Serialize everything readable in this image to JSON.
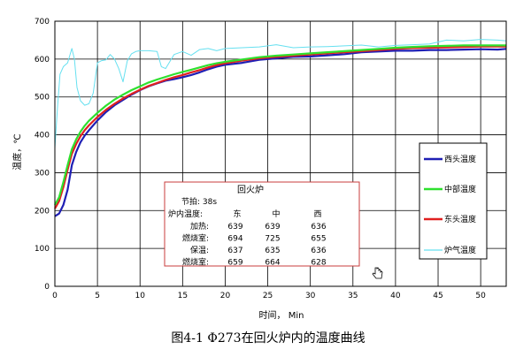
{
  "chart_data": {
    "type": "line",
    "caption": "图4-1  Φ273在回火炉内的温度曲线",
    "xlabel": "时间，  Min",
    "ylabel": "温度，℃",
    "xlim": [
      0,
      53
    ],
    "ylim": [
      0,
      700
    ],
    "xticks": [
      0,
      5,
      10,
      15,
      20,
      25,
      30,
      35,
      40,
      45,
      50
    ],
    "yticks": [
      0,
      100,
      200,
      300,
      400,
      500,
      600,
      700
    ],
    "grid": true,
    "legend_position": "right",
    "series": [
      {
        "name": "西头温度",
        "color": "#1f1fb4",
        "x": [
          0,
          0.5,
          1,
          1.5,
          2,
          2.5,
          3,
          3.5,
          4,
          5,
          6,
          7,
          8,
          9,
          10,
          11,
          12,
          13,
          14,
          15,
          16,
          17,
          18,
          19,
          20,
          22,
          24,
          26,
          28,
          30,
          32,
          34,
          36,
          38,
          40,
          42,
          44,
          46,
          48,
          50,
          52,
          53
        ],
        "y": [
          185,
          192,
          215,
          255,
          320,
          355,
          380,
          398,
          412,
          438,
          460,
          478,
          492,
          506,
          518,
          528,
          536,
          543,
          547,
          552,
          558,
          565,
          573,
          580,
          585,
          590,
          598,
          602,
          606,
          607,
          610,
          613,
          618,
          620,
          622,
          622,
          624,
          624,
          625,
          626,
          625,
          627
        ]
      },
      {
        "name": "中部温度",
        "color": "#2ee02e",
        "x": [
          0,
          0.5,
          1,
          1.5,
          2,
          2.5,
          3,
          3.5,
          4,
          5,
          6,
          7,
          8,
          9,
          10,
          11,
          12,
          13,
          14,
          15,
          16,
          17,
          18,
          19,
          20,
          22,
          24,
          26,
          28,
          30,
          32,
          34,
          36,
          38,
          40,
          42,
          44,
          46,
          48,
          50,
          52,
          53
        ],
        "y": [
          215,
          235,
          275,
          320,
          362,
          388,
          408,
          424,
          437,
          458,
          477,
          493,
          506,
          518,
          528,
          538,
          546,
          553,
          560,
          566,
          572,
          578,
          584,
          589,
          593,
          599,
          605,
          609,
          612,
          615,
          618,
          621,
          624,
          627,
          630,
          632,
          634,
          635,
          636,
          636,
          636,
          636
        ]
      },
      {
        "name": "东头温度",
        "color": "#e02020",
        "x": [
          0,
          0.5,
          1,
          1.5,
          2,
          2.5,
          3,
          3.5,
          4,
          5,
          6,
          7,
          8,
          9,
          10,
          11,
          12,
          13,
          14,
          15,
          16,
          17,
          18,
          19,
          20,
          22,
          24,
          26,
          28,
          30,
          32,
          34,
          36,
          38,
          40,
          42,
          44,
          46,
          48,
          50,
          52,
          53
        ],
        "y": [
          205,
          225,
          262,
          308,
          350,
          376,
          396,
          412,
          425,
          447,
          466,
          482,
          496,
          508,
          519,
          529,
          537,
          545,
          552,
          558,
          565,
          571,
          578,
          584,
          589,
          596,
          602,
          606,
          609,
          612,
          615,
          618,
          621,
          624,
          627,
          629,
          630,
          631,
          632,
          633,
          633,
          633
        ]
      },
      {
        "name": "炉气温度",
        "color": "#66e0f0",
        "x": [
          0,
          0.3,
          0.6,
          1,
          1.5,
          2,
          2.3,
          2.6,
          3,
          3.5,
          4,
          4.5,
          5,
          5.5,
          6,
          6.5,
          7,
          7.5,
          8,
          8.5,
          9,
          9.5,
          10,
          11,
          12,
          12.5,
          13,
          14,
          15,
          16,
          17,
          18,
          19,
          20,
          22,
          24,
          26,
          28,
          30,
          32,
          34,
          36,
          38,
          40,
          42,
          44,
          46,
          48,
          50,
          52,
          53
        ],
        "y": [
          365,
          470,
          560,
          580,
          590,
          628,
          600,
          525,
          490,
          478,
          482,
          510,
          590,
          596,
          598,
          612,
          600,
          575,
          540,
          595,
          614,
          620,
          622,
          622,
          620,
          580,
          575,
          612,
          620,
          610,
          625,
          628,
          622,
          628,
          630,
          632,
          638,
          630,
          632,
          633,
          635,
          637,
          632,
          636,
          638,
          640,
          650,
          648,
          652,
          650,
          648
        ]
      }
    ],
    "annotation_box": {
      "title": "回火炉",
      "line1": "节拍:    38s",
      "header_label": "炉内温度:",
      "col_east": "东",
      "col_mid": "中",
      "col_west": "西",
      "rows": [
        {
          "label": "加热:",
          "east": "639",
          "mid": "639",
          "west": "636"
        },
        {
          "label": "燃烧室:",
          "east": "694",
          "mid": "725",
          "west": "655"
        },
        {
          "label": "保温:",
          "east": "637",
          "mid": "635",
          "west": "636"
        },
        {
          "label": "燃烧室:",
          "east": "659",
          "mid": "664",
          "west": "628"
        }
      ]
    }
  }
}
